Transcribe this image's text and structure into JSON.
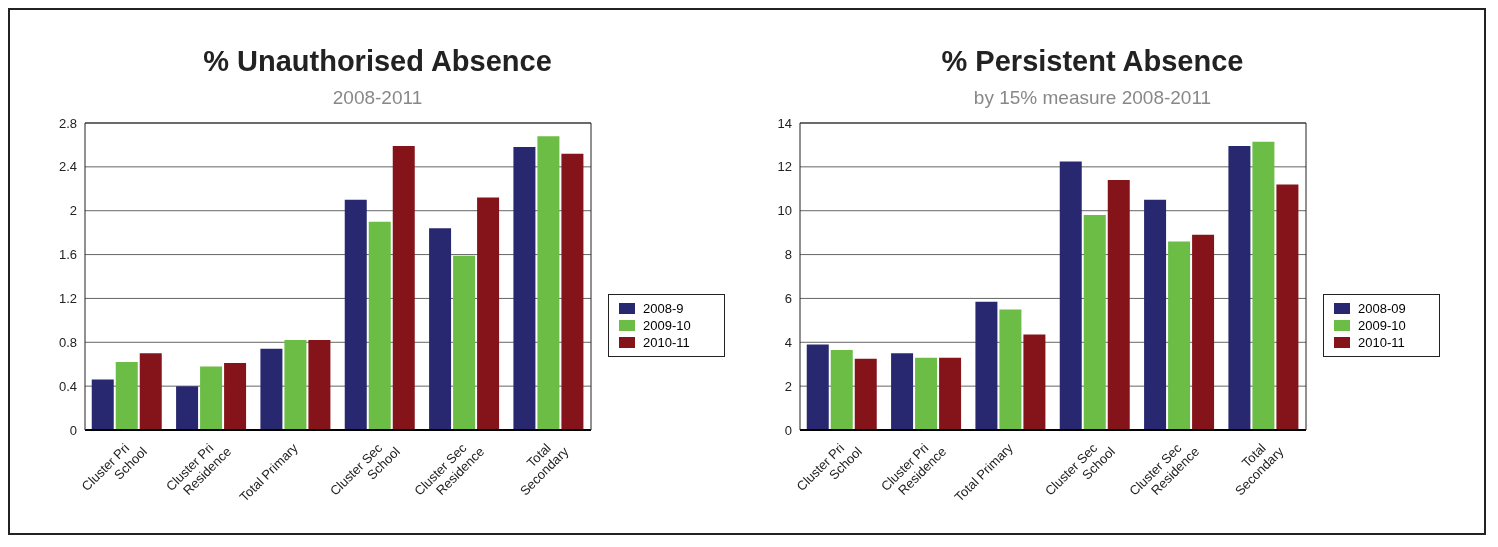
{
  "chart_data": [
    {
      "type": "bar",
      "title": "% Unauthorised Absence",
      "subtitle": "2008-2011",
      "categories": [
        "Cluster Pri\nSchool",
        "Cluster Pri\nResidence",
        "Total Primary",
        "Cluster Sec\nSchool",
        "Cluster Sec\nResidence",
        "Total\nSecondary"
      ],
      "series": [
        {
          "name": "2008-9",
          "color": "#282870",
          "values": [
            0.46,
            0.4,
            0.74,
            2.1,
            1.84,
            2.58
          ]
        },
        {
          "name": "2009-10",
          "color": "#6bbd45",
          "values": [
            0.62,
            0.58,
            0.82,
            1.9,
            1.59,
            2.68
          ]
        },
        {
          "name": "2010-11",
          "color": "#85141a",
          "values": [
            0.7,
            0.61,
            0.82,
            2.59,
            2.12,
            2.52
          ]
        }
      ],
      "ylim": [
        0,
        2.8
      ],
      "yticks": [
        0,
        0.4,
        0.8,
        1.2,
        1.6,
        2,
        2.4,
        2.8
      ],
      "grid": "y",
      "legend": "right"
    },
    {
      "type": "bar",
      "title": "% Persistent Absence",
      "subtitle": "by 15% measure 2008-2011",
      "categories": [
        "Cluster Pri\nSchool",
        "Cluster Pri\nResidence",
        "Total Primary",
        "Cluster Sec\nSchool",
        "Cluster Sec\nResidence",
        "Total\nSecondary"
      ],
      "series": [
        {
          "name": "2008-09",
          "color": "#282870",
          "values": [
            3.9,
            3.5,
            5.85,
            12.25,
            10.5,
            12.95
          ]
        },
        {
          "name": "2009-10",
          "color": "#6bbd45",
          "values": [
            3.65,
            3.3,
            5.5,
            9.8,
            8.6,
            13.15
          ]
        },
        {
          "name": "2010-11",
          "color": "#85141a",
          "values": [
            3.25,
            3.3,
            4.35,
            11.4,
            8.9,
            11.2
          ]
        }
      ],
      "ylim": [
        0,
        14
      ],
      "yticks": [
        0,
        2,
        4,
        6,
        8,
        10,
        12,
        14
      ],
      "grid": "y",
      "legend": "right"
    }
  ]
}
